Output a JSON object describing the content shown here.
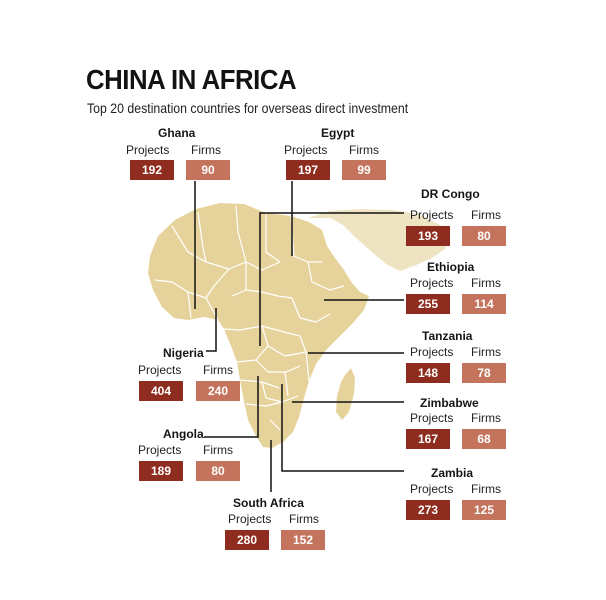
{
  "header": {
    "title": "CHINA IN AFRICA",
    "subtitle": "Top 20 destination countries for overseas direct investment"
  },
  "colors": {
    "projects_box": "#8e2d1f",
    "firms_box": "#c4735c",
    "land": "#e6d39b",
    "border_lines": "#ffffff",
    "leader_lines": "#111111",
    "outer_land": "#efe4c2"
  },
  "labels": {
    "projects": "Projects",
    "firms": "Firms"
  },
  "countries": [
    {
      "name": "Ghana",
      "projects": 192,
      "firms": 90
    },
    {
      "name": "Egypt",
      "projects": 197,
      "firms": 99
    },
    {
      "name": "DR Congo",
      "projects": 193,
      "firms": 80
    },
    {
      "name": "Ethiopia",
      "projects": 255,
      "firms": 114
    },
    {
      "name": "Tanzania",
      "projects": 148,
      "firms": 78
    },
    {
      "name": "Nigeria",
      "projects": 404,
      "firms": 240
    },
    {
      "name": "Zimbabwe",
      "projects": 167,
      "firms": 68
    },
    {
      "name": "Angola",
      "projects": 189,
      "firms": 80
    },
    {
      "name": "Zambia",
      "projects": 273,
      "firms": 125
    },
    {
      "name": "South Africa",
      "projects": 280,
      "firms": 152
    }
  ]
}
